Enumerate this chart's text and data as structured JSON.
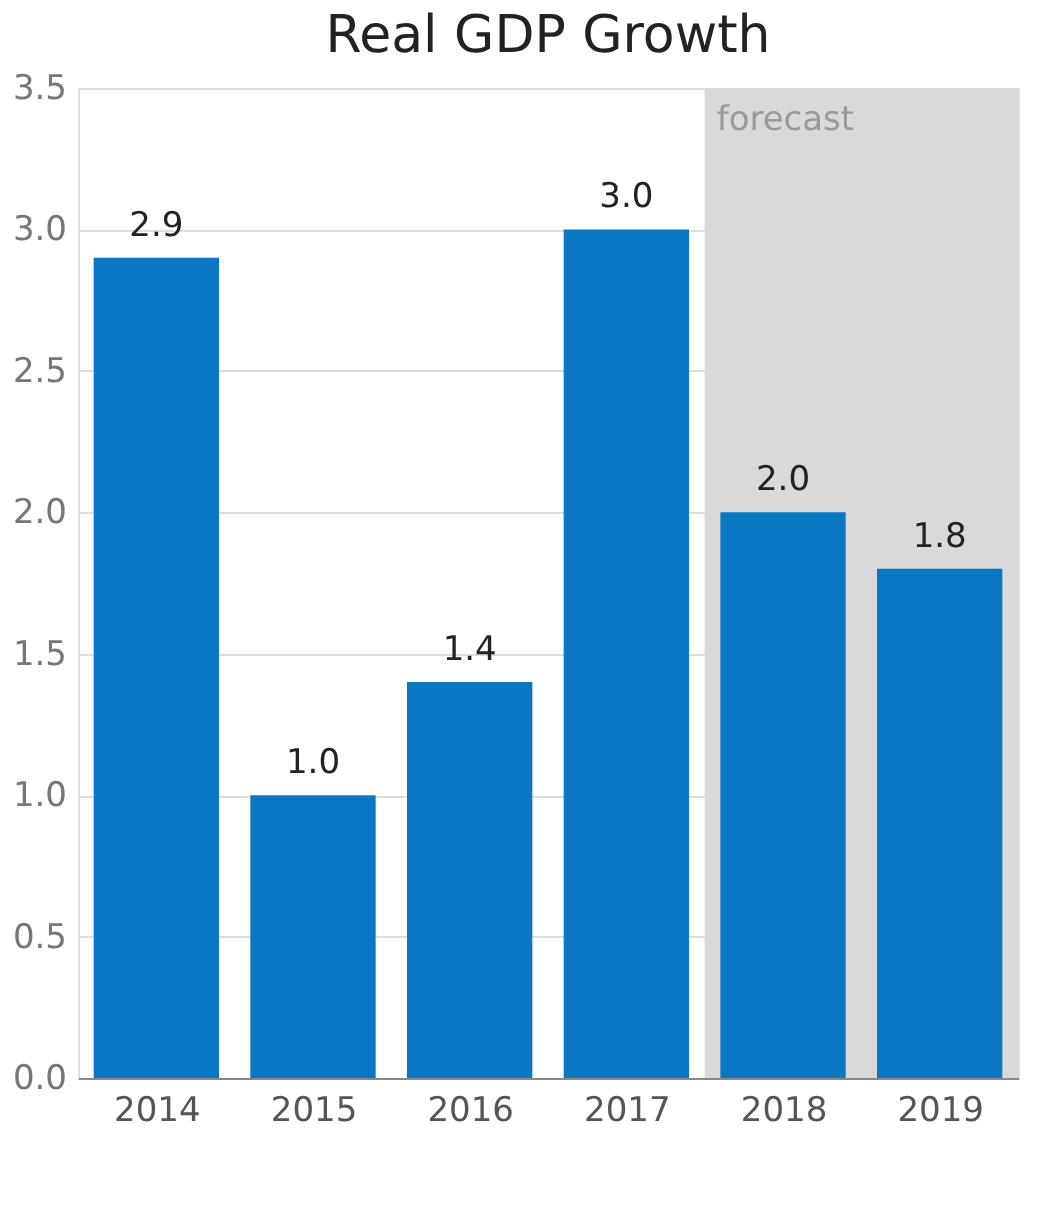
{
  "chart_data": {
    "type": "bar",
    "title": "Real GDP Growth",
    "categories": [
      "2014",
      "2015",
      "2016",
      "2017",
      "2018",
      "2019"
    ],
    "values": [
      2.9,
      1.0,
      1.4,
      3.0,
      2.0,
      1.8
    ],
    "color": "#0a77c2",
    "value_labels": [
      "2.9",
      "1.0",
      "1.4",
      "3.0",
      "2.0",
      "1.8"
    ],
    "ylim": [
      0,
      3.5
    ],
    "yticks": [
      {
        "value": 0,
        "label": "0.0"
      },
      0.5,
      {
        "value": 1,
        "label": "1.0"
      },
      1.5,
      {
        "value": 2,
        "label": "2.0"
      },
      2.5,
      {
        "value": 3,
        "label": "3.0"
      },
      3.5
    ],
    "grid": "y",
    "bands": [
      {
        "axis": "x",
        "from": "2018",
        "to": "2019",
        "label": "forecast",
        "color": "#d9d9d9"
      }
    ]
  }
}
